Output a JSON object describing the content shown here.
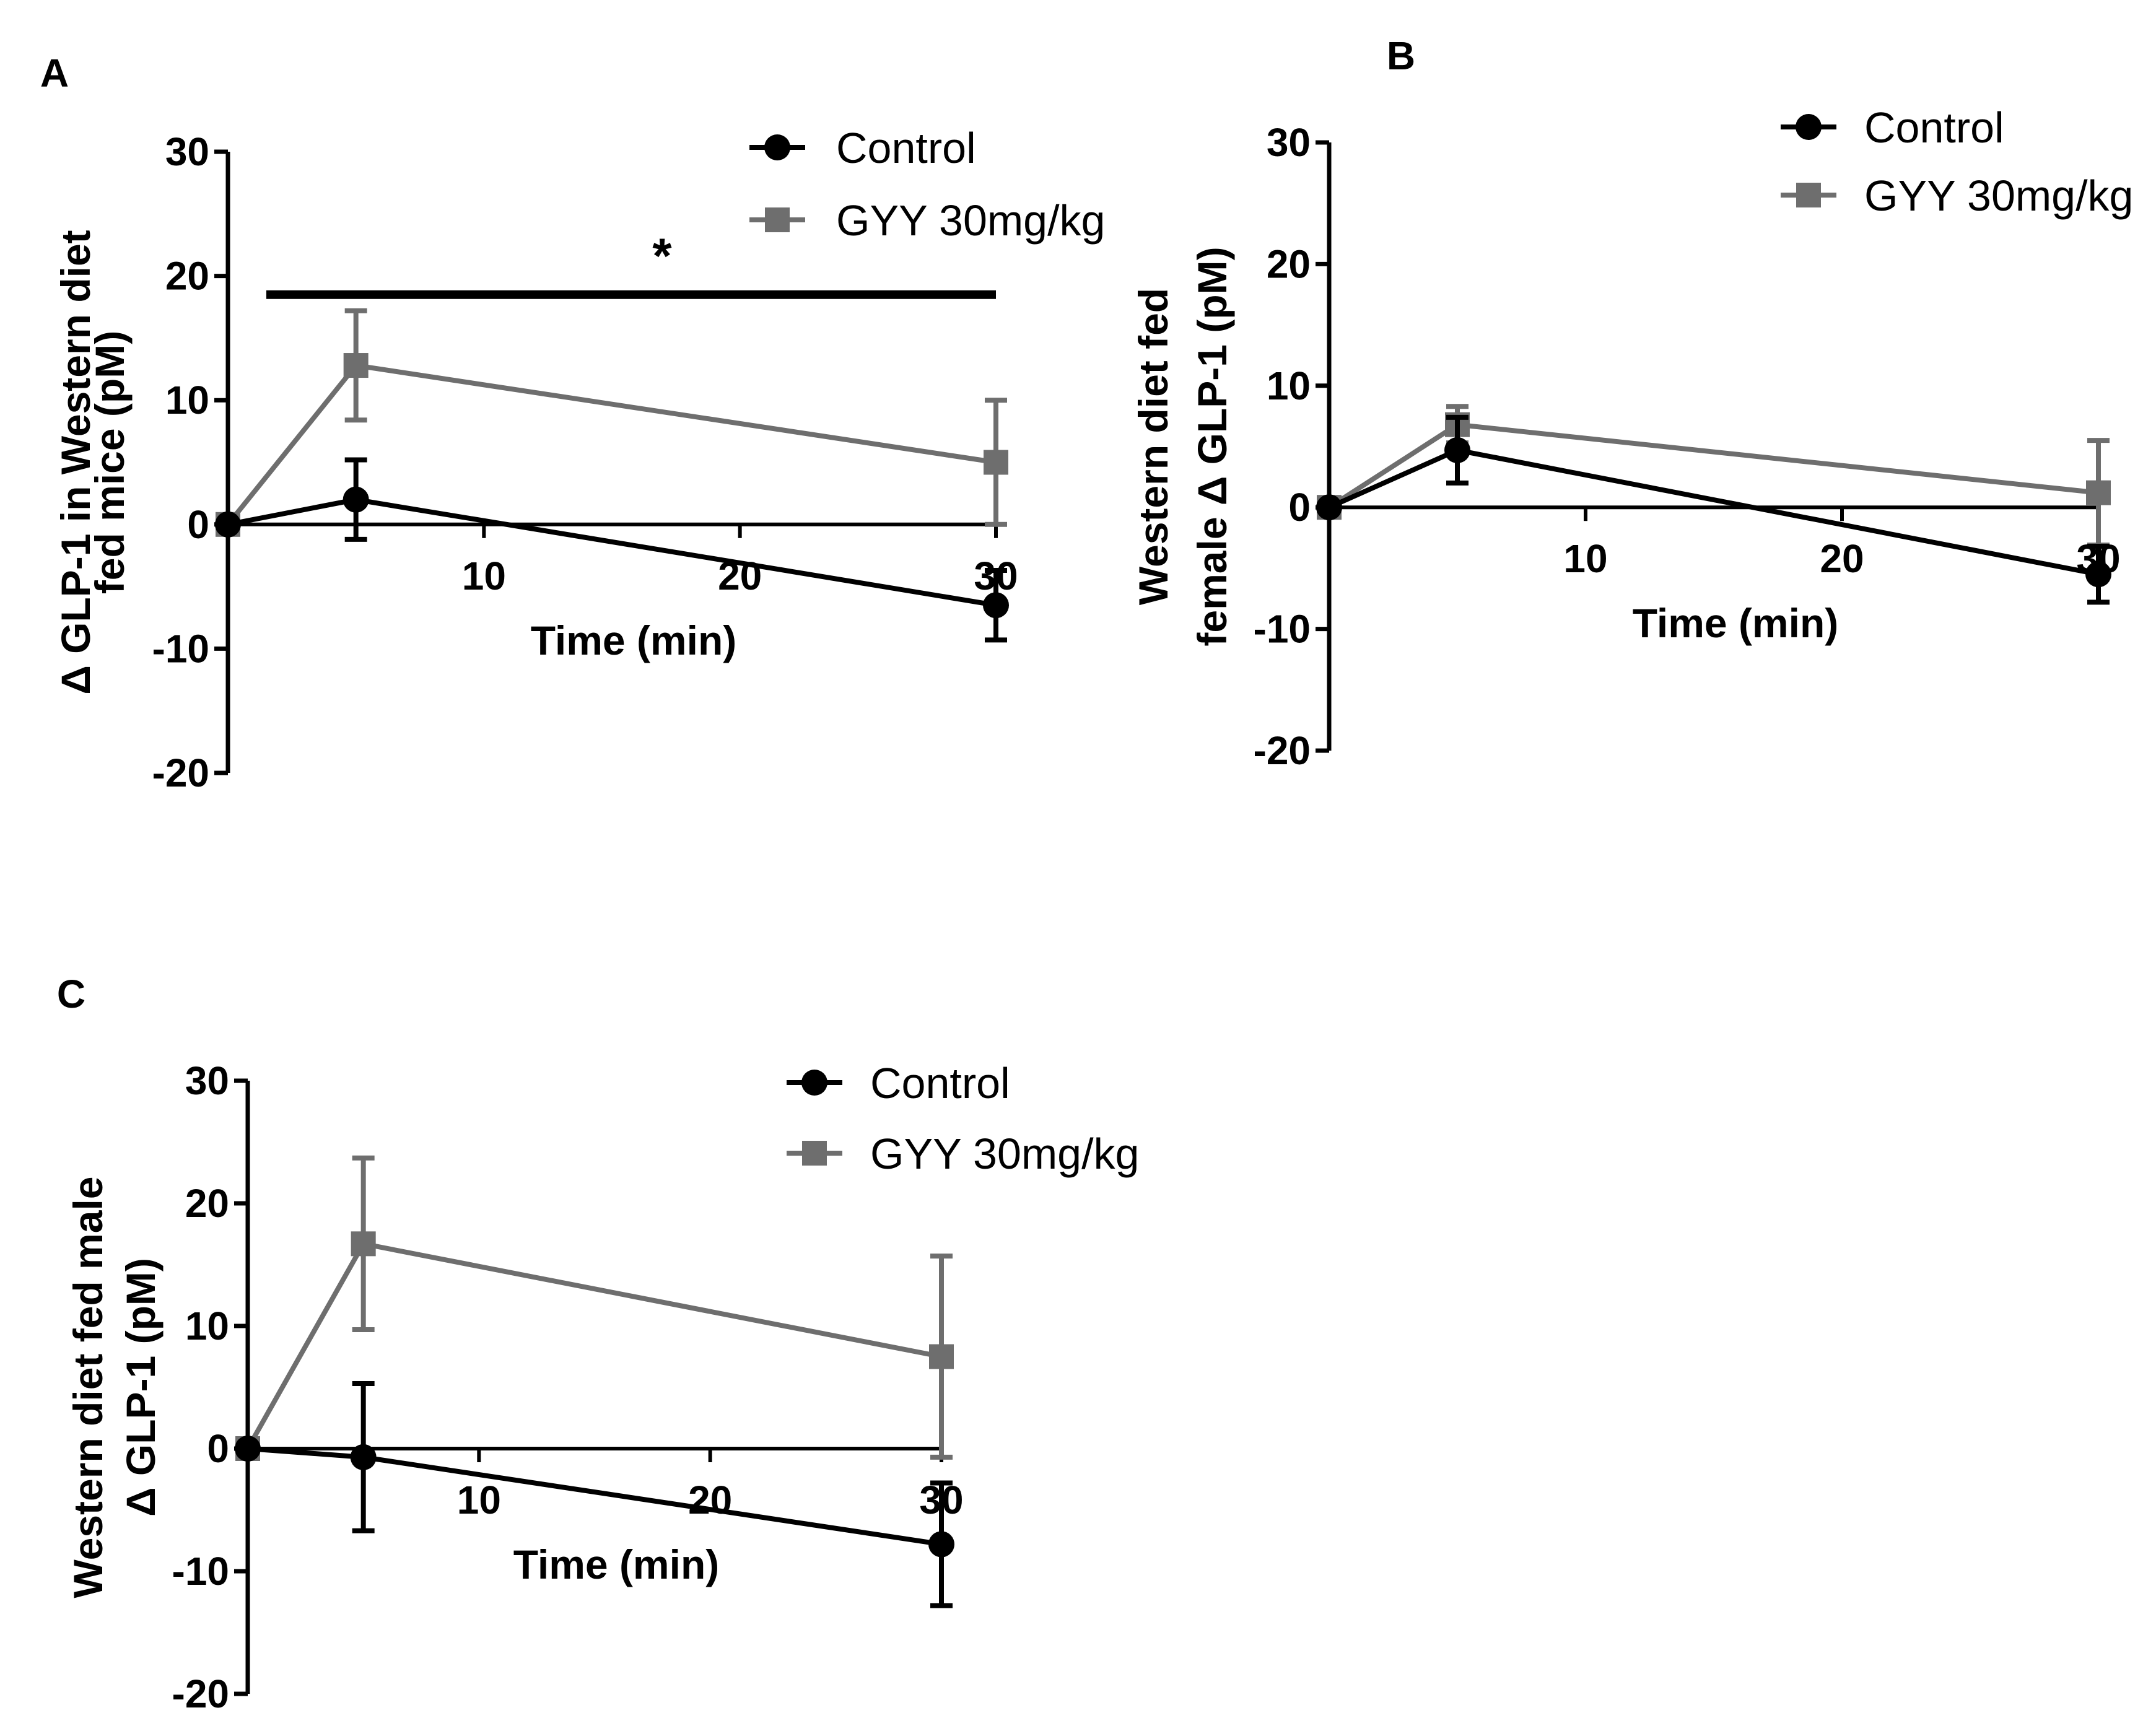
{
  "colors": {
    "control": "#000000",
    "treated": "#6e6e6e",
    "axis": "#000000"
  },
  "chart_data": [
    {
      "panel": "A",
      "type": "line",
      "xlabel": "Time (min)",
      "ylabel_lines": [
        "Δ GLP-1 in Western diet",
        "fed mice (pM)"
      ],
      "xticks": [
        10,
        20,
        30
      ],
      "yticks": [
        -20,
        -10,
        0,
        10,
        20,
        30
      ],
      "xlim": [
        0,
        30
      ],
      "ylim": [
        -20,
        30
      ],
      "legend": {
        "position": "top-right"
      },
      "series": [
        {
          "name": "Control",
          "marker": "circle",
          "x": [
            0,
            5,
            30
          ],
          "y": [
            0,
            2,
            -6.5
          ],
          "err": [
            0,
            3.2,
            2.8
          ]
        },
        {
          "name": "GYY 30mg/kg",
          "marker": "square",
          "x": [
            0,
            5,
            30
          ],
          "y": [
            0,
            12.8,
            5
          ],
          "err": [
            0,
            4.4,
            5
          ]
        }
      ],
      "significance": {
        "symbol": "*",
        "x_from": 1.5,
        "x_to": 30,
        "y": 18.5
      }
    },
    {
      "panel": "B",
      "type": "line",
      "xlabel": "Time (min)",
      "ylabel_lines": [
        "Western diet fed",
        "female Δ GLP-1 (pM)"
      ],
      "xticks": [
        10,
        20,
        30
      ],
      "yticks": [
        -20,
        -10,
        0,
        10,
        20,
        30
      ],
      "xlim": [
        0,
        30
      ],
      "ylim": [
        -20,
        30
      ],
      "legend": {
        "position": "top-right"
      },
      "series": [
        {
          "name": "Control",
          "marker": "circle",
          "x": [
            0,
            5,
            30
          ],
          "y": [
            0,
            4.7,
            -5.5
          ],
          "err": [
            0,
            2.7,
            2.3
          ]
        },
        {
          "name": "GYY 30mg/kg",
          "marker": "square",
          "x": [
            0,
            5,
            30
          ],
          "y": [
            0,
            6.8,
            1.2
          ],
          "err": [
            0,
            1.5,
            4.3
          ]
        }
      ]
    },
    {
      "panel": "C",
      "type": "line",
      "xlabel": "Time (min)",
      "ylabel_lines": [
        "Western diet fed male",
        "Δ GLP-1 (pM)"
      ],
      "xticks": [
        10,
        20,
        30
      ],
      "yticks": [
        -20,
        -10,
        0,
        10,
        20,
        30
      ],
      "xlim": [
        0,
        30
      ],
      "ylim": [
        -20,
        30
      ],
      "legend": {
        "position": "top-right"
      },
      "series": [
        {
          "name": "Control",
          "marker": "circle",
          "x": [
            0,
            5,
            30
          ],
          "y": [
            0,
            -0.7,
            -7.8
          ],
          "err": [
            0,
            6,
            5
          ]
        },
        {
          "name": "GYY 30mg/kg",
          "marker": "square",
          "x": [
            0,
            5,
            30
          ],
          "y": [
            0,
            16.7,
            7.5
          ],
          "err": [
            0,
            7,
            8.2
          ]
        }
      ]
    }
  ]
}
